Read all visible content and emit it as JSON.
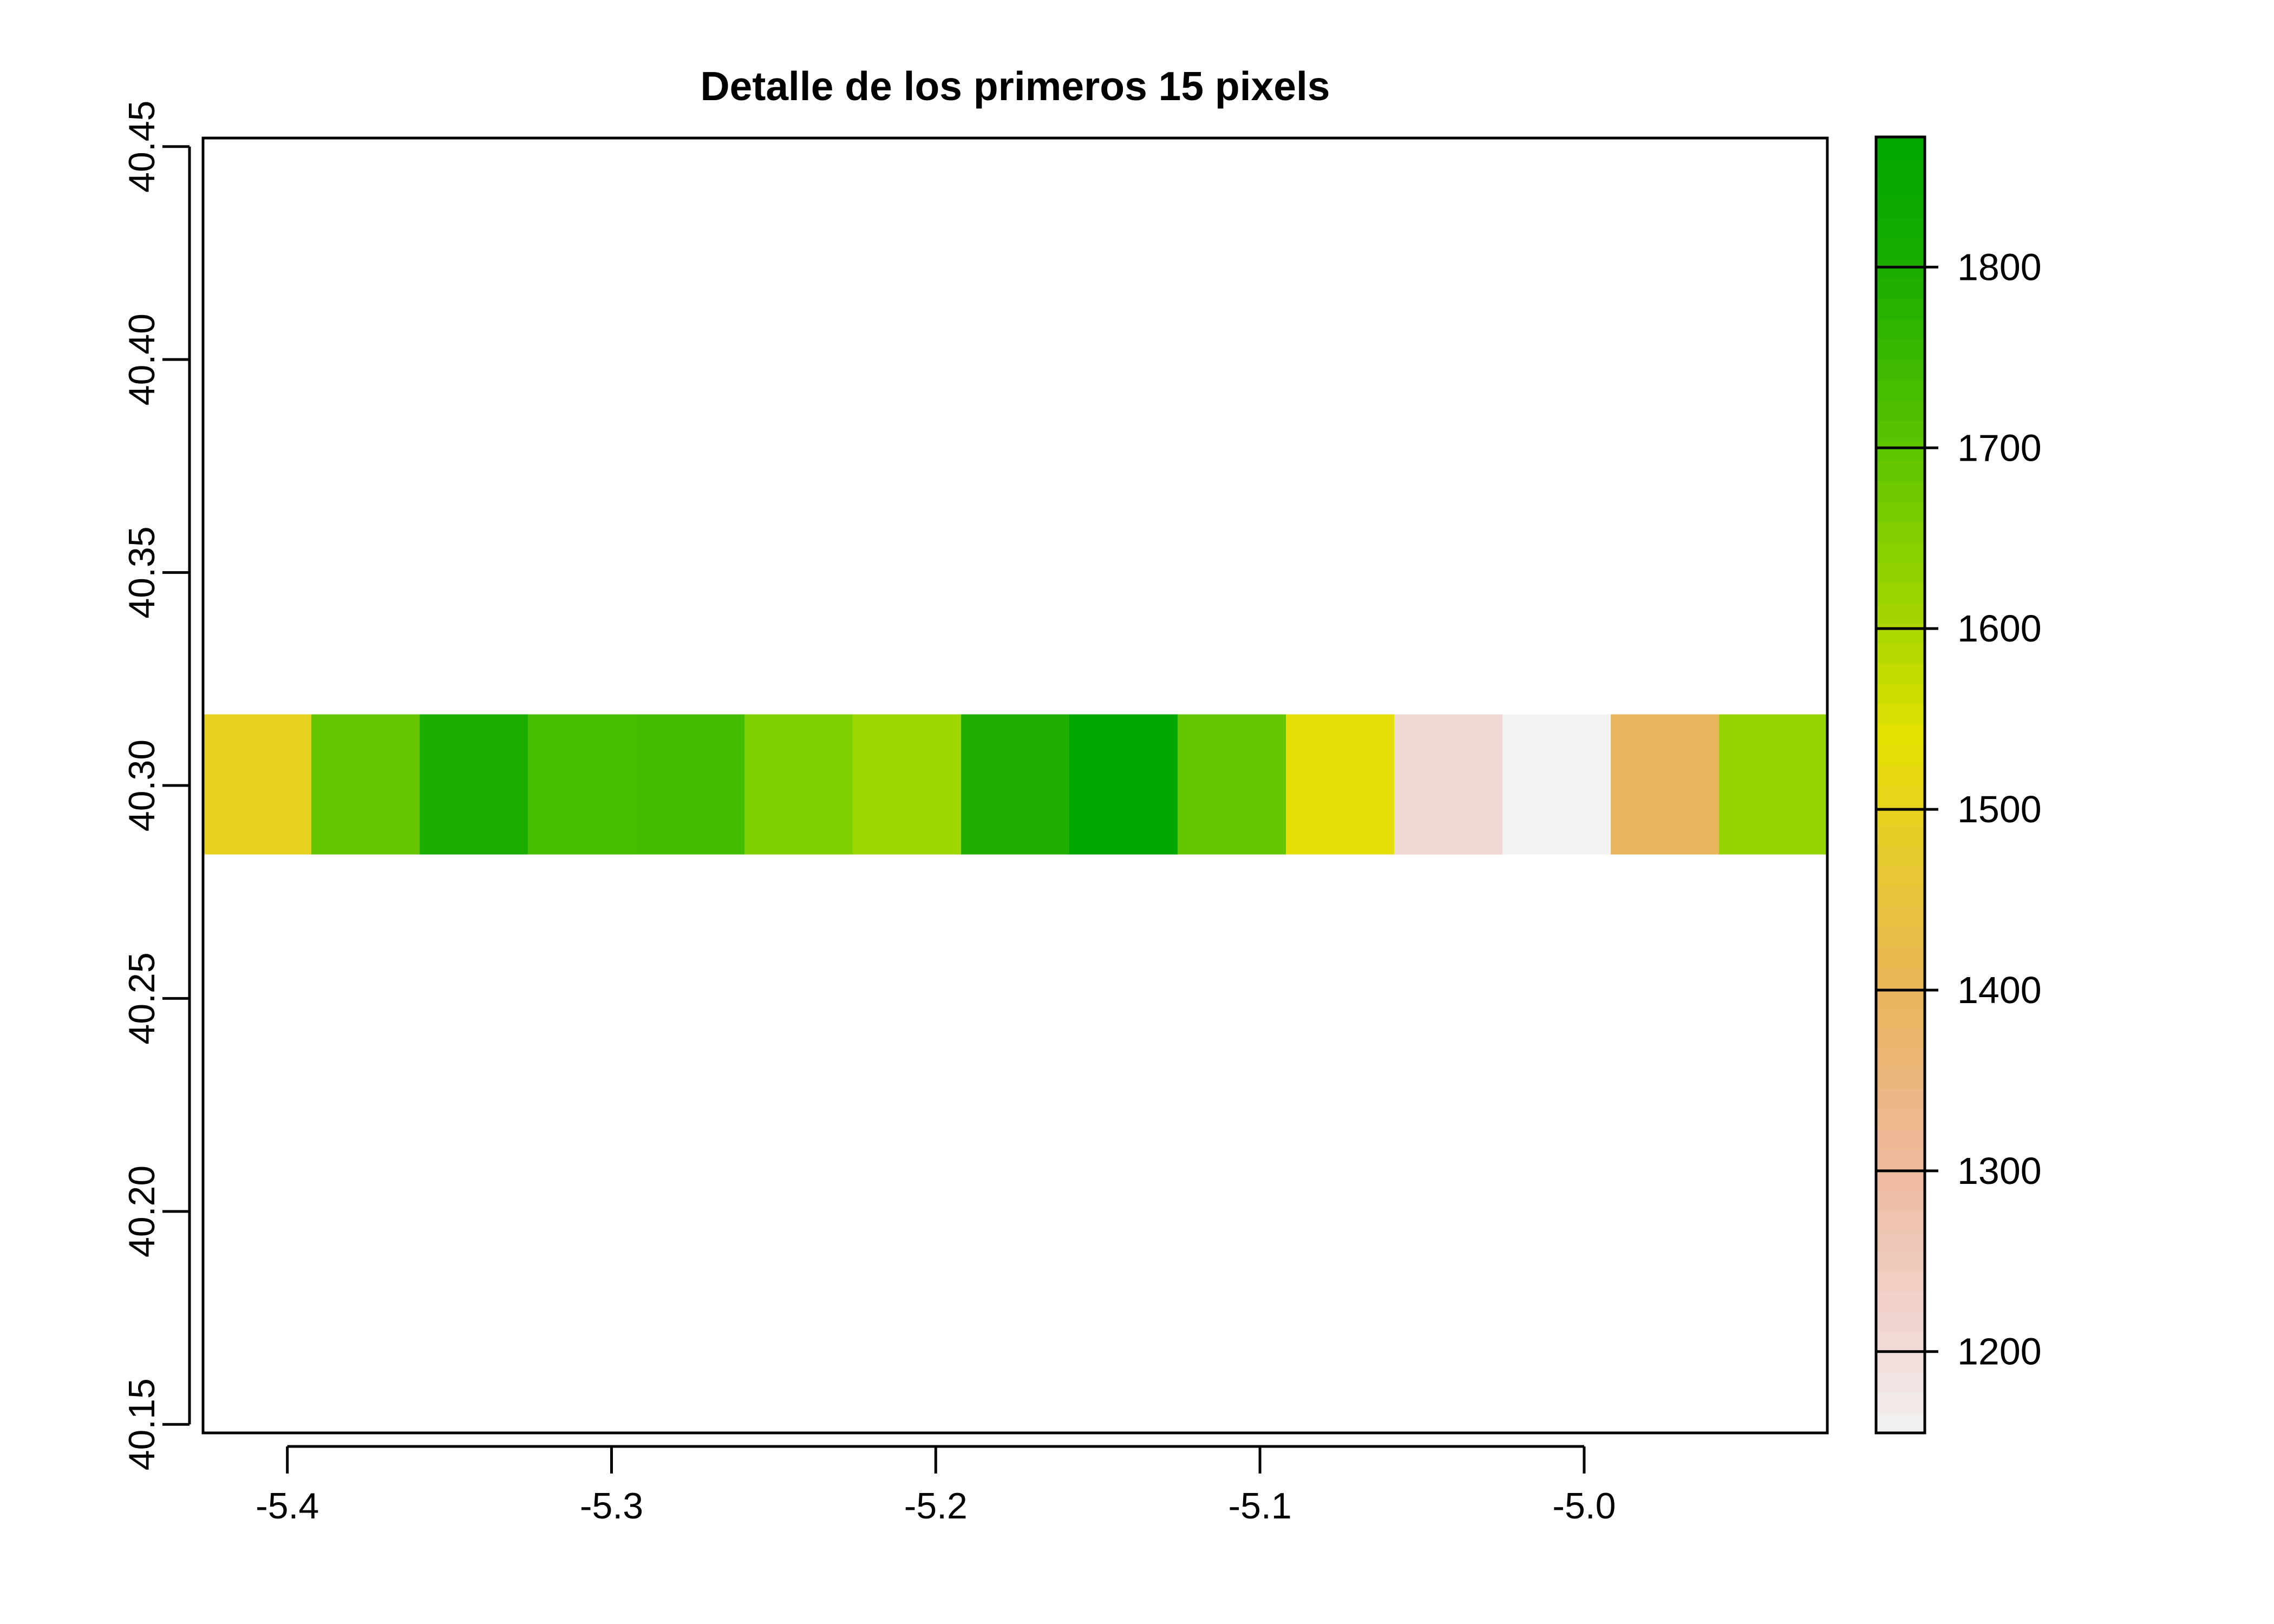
{
  "chart_data": {
    "type": "heatmap",
    "title": "Detalle de los primeros 15 pixels",
    "xlabel": "",
    "ylabel": "",
    "xlim": [
      -5.426,
      -4.925
    ],
    "ylim": [
      40.148,
      40.452
    ],
    "x_ticks": [
      -5.4,
      -5.3,
      -5.2,
      -5.1,
      -5.0
    ],
    "x_tick_labels": [
      "-5.4",
      "-5.3",
      "-5.2",
      "-5.1",
      "-5.0"
    ],
    "y_ticks": [
      40.15,
      40.2,
      40.25,
      40.3,
      40.35,
      40.4,
      40.45
    ],
    "y_tick_labels": [
      "40.15",
      "40.20",
      "40.25",
      "40.30",
      "40.35",
      "40.40",
      "40.45"
    ],
    "row": {
      "x_start": -5.426,
      "x_end": -4.925,
      "y_min": 40.2838,
      "y_max": 40.3167
    },
    "pixels": [
      {
        "value": 1480,
        "color": "#e6d21e"
      },
      {
        "value": 1690,
        "color": "#63c600"
      },
      {
        "value": 1820,
        "color": "#1aad00"
      },
      {
        "value": 1750,
        "color": "#47bf00"
      },
      {
        "value": 1760,
        "color": "#42bd00"
      },
      {
        "value": 1650,
        "color": "#80cf00"
      },
      {
        "value": 1610,
        "color": "#9dd600"
      },
      {
        "value": 1810,
        "color": "#1fae00"
      },
      {
        "value": 1860,
        "color": "#00a600"
      },
      {
        "value": 1690,
        "color": "#63c600"
      },
      {
        "value": 1530,
        "color": "#e6de07"
      },
      {
        "value": 1220,
        "color": "#f1d7d3"
      },
      {
        "value": 1160,
        "color": "#f2f2f2"
      },
      {
        "value": 1380,
        "color": "#e8b55c"
      },
      {
        "value": 1620,
        "color": "#96d400"
      }
    ],
    "legend": {
      "placement": "right",
      "min": 1155,
      "max": 1872,
      "ticks": [
        1200,
        1300,
        1400,
        1500,
        1600,
        1700,
        1800
      ],
      "tick_labels": [
        "1200",
        "1300",
        "1400",
        "1500",
        "1600",
        "1700",
        "1800"
      ],
      "stops": [
        {
          "value": 1155,
          "color": "#f2f2f2"
        },
        {
          "value": 1200,
          "color": "#f1dcd8"
        },
        {
          "value": 1300,
          "color": "#eeb99f"
        },
        {
          "value": 1400,
          "color": "#e9b45a"
        },
        {
          "value": 1500,
          "color": "#e6d21e"
        },
        {
          "value": 1540,
          "color": "#e6e100"
        },
        {
          "value": 1600,
          "color": "#aad800"
        },
        {
          "value": 1700,
          "color": "#5cc400"
        },
        {
          "value": 1800,
          "color": "#1aad00"
        },
        {
          "value": 1872,
          "color": "#00a600"
        }
      ]
    }
  }
}
